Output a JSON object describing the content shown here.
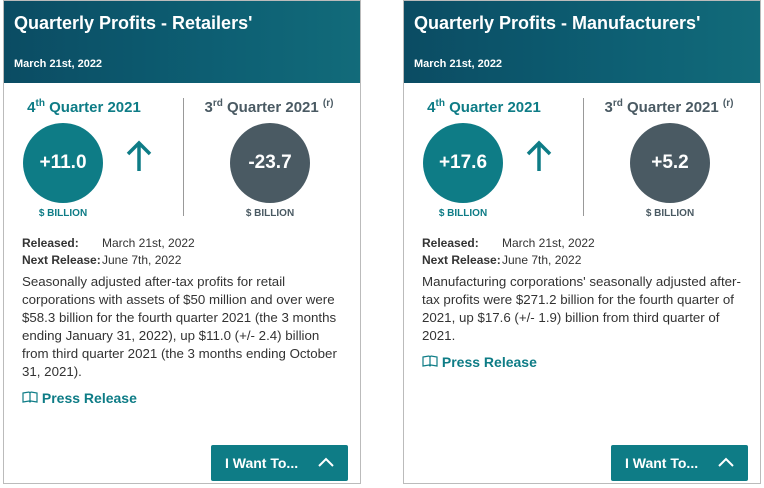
{
  "cards": [
    {
      "title": "Quarterly Profits - Retailers'",
      "date": "March 21st, 2022",
      "current": {
        "number": "4",
        "suffix": "th",
        "label": "Quarter 2021",
        "value": "+11.0",
        "unit": "$ BILLION"
      },
      "previous": {
        "number": "3",
        "suffix": "rd",
        "label": "Quarter 2021",
        "note": "(r)",
        "value": "-23.7",
        "unit": "$ BILLION"
      },
      "released_label": "Released:",
      "released": "March 21st, 2022",
      "next_label": "Next Release:",
      "next": "June 7th, 2022",
      "description": "Seasonally adjusted after-tax profits for retail corporations with assets of $50 million and over were $58.3 billion for the fourth quarter 2021 (the 3 months ending January 31, 2022), up $11.0 (+/- 2.4) billion from third quarter 2021 (the 3 months ending October 31, 2021).",
      "press": "Press Release",
      "button": "I Want To..."
    },
    {
      "title": "Quarterly Profits - Manufacturers'",
      "date": "March 21st, 2022",
      "current": {
        "number": "4",
        "suffix": "th",
        "label": "Quarter 2021",
        "value": "+17.6",
        "unit": "$ BILLION"
      },
      "previous": {
        "number": "3",
        "suffix": "rd",
        "label": "Quarter 2021",
        "note": "(r)",
        "value": "+5.2",
        "unit": "$ BILLION"
      },
      "released_label": "Released:",
      "released": "March 21st, 2022",
      "next_label": "Next Release:",
      "next": "June 7th, 2022",
      "description": "Manufacturing corporations' seasonally adjusted after-tax profits were $271.2 billion for the fourth quarter of 2021, up $17.6 (+/- 1.9) billion from third quarter of 2021.",
      "press": "Press Release",
      "button": "I Want To..."
    }
  ]
}
